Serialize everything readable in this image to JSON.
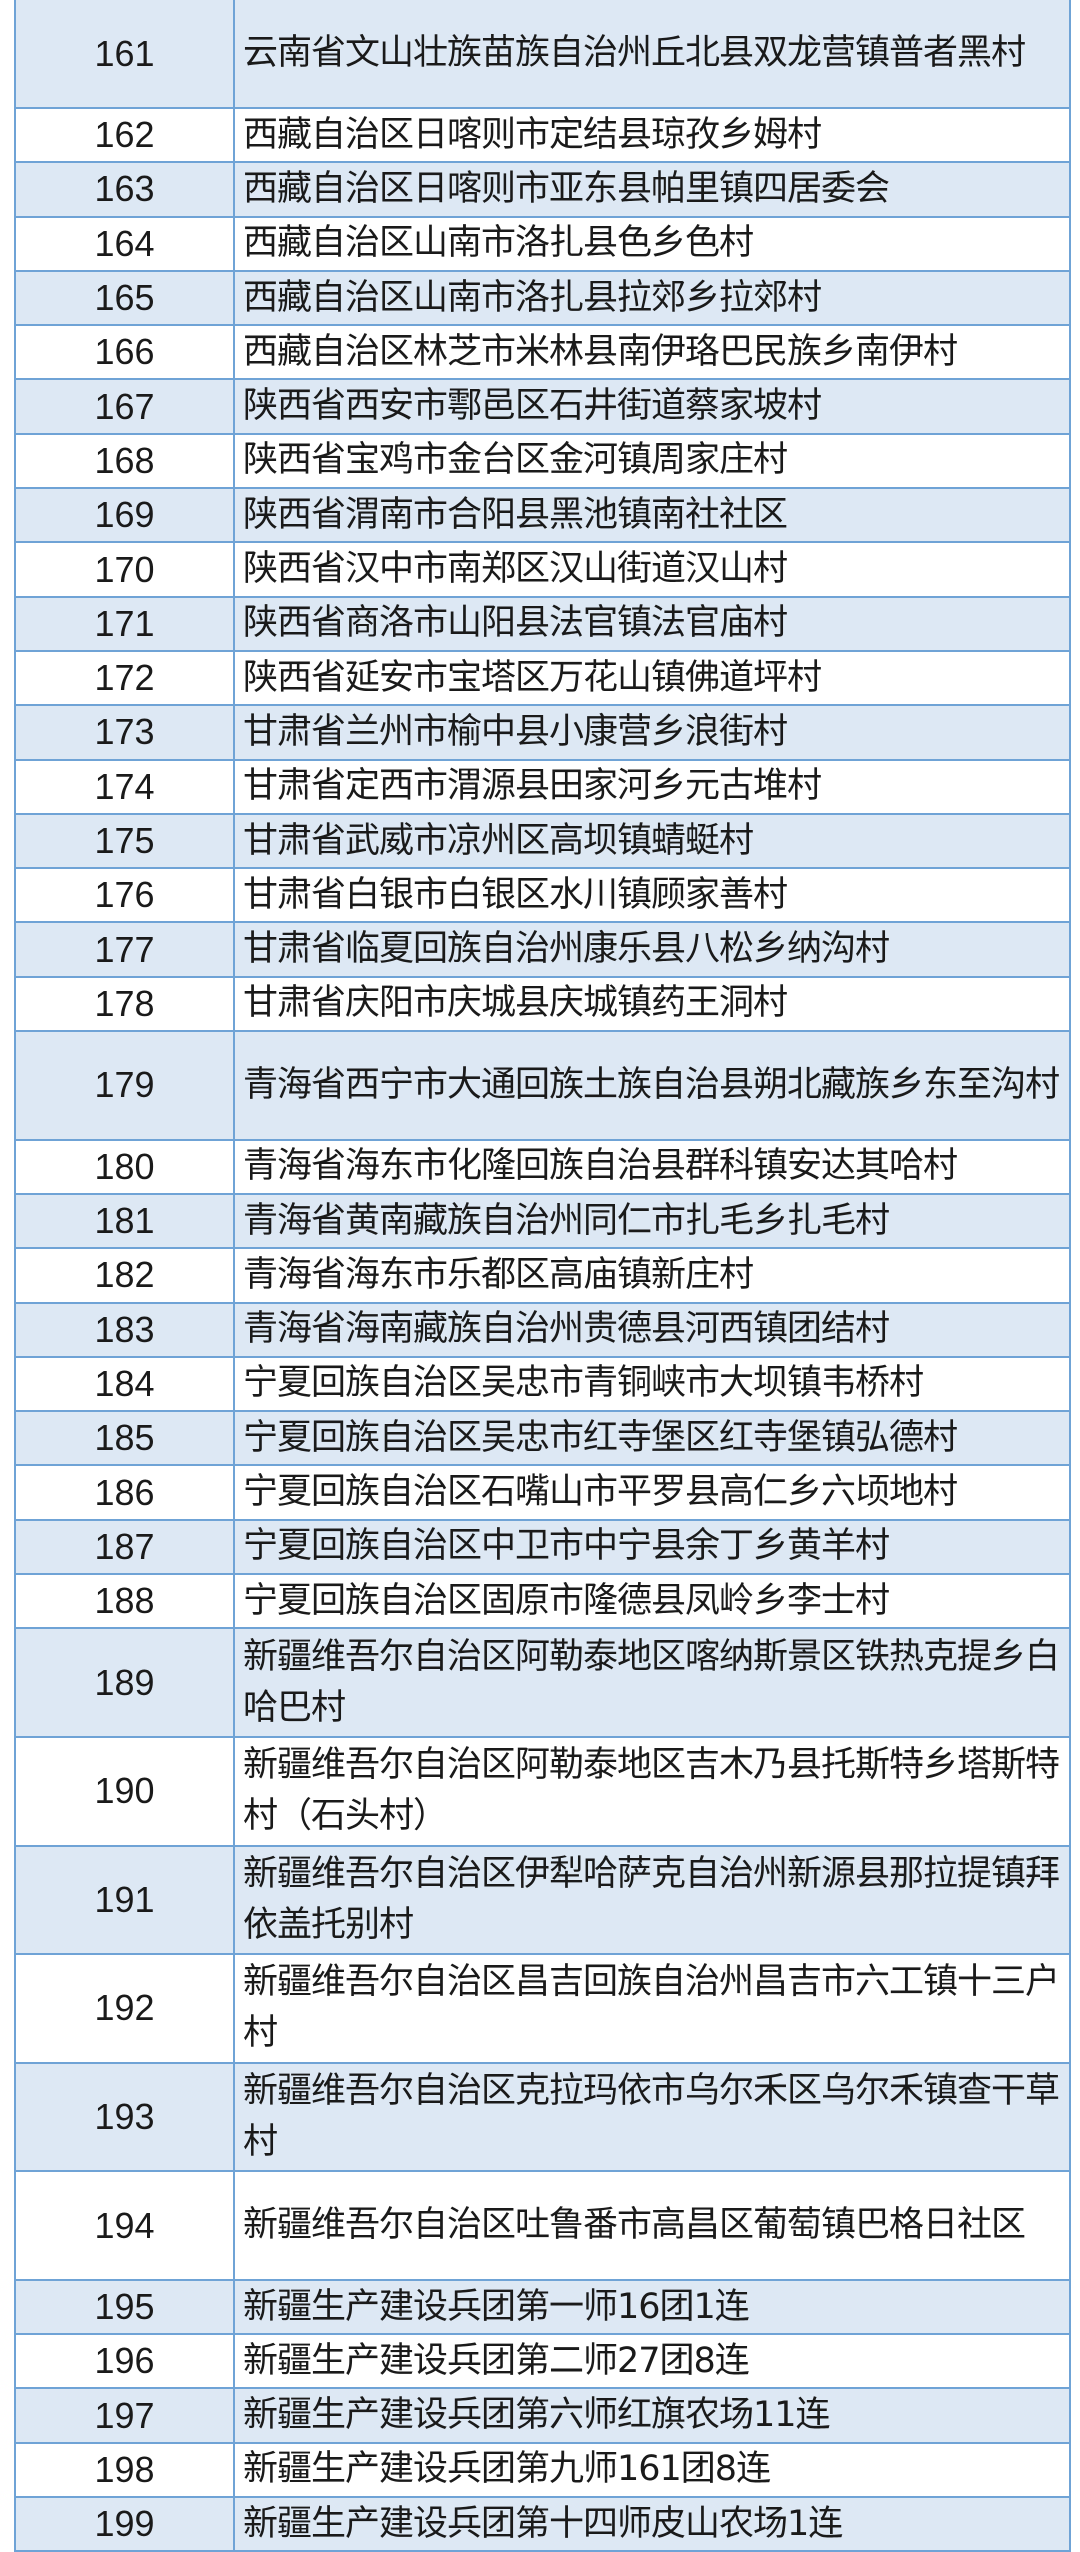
{
  "colors": {
    "border": "#6fa3d6",
    "stripe": "#dde8f4",
    "text": "#1a1a1a"
  },
  "rows": [
    {
      "no": "161",
      "name": "云南省文山壮族苗族自治州丘北县双龙营镇普者黑村",
      "lines": 2
    },
    {
      "no": "162",
      "name": "西藏自治区日喀则市定结县琼孜乡姆村",
      "lines": 1
    },
    {
      "no": "163",
      "name": "西藏自治区日喀则市亚东县帕里镇四居委会",
      "lines": 1
    },
    {
      "no": "164",
      "name": "西藏自治区山南市洛扎县色乡色村",
      "lines": 1
    },
    {
      "no": "165",
      "name": "西藏自治区山南市洛扎县拉郊乡拉郊村",
      "lines": 1
    },
    {
      "no": "166",
      "name": "西藏自治区林芝市米林县南伊珞巴民族乡南伊村",
      "lines": 1
    },
    {
      "no": "167",
      "name": "陕西省西安市鄠邑区石井街道蔡家坡村",
      "lines": 1
    },
    {
      "no": "168",
      "name": "陕西省宝鸡市金台区金河镇周家庄村",
      "lines": 1
    },
    {
      "no": "169",
      "name": "陕西省渭南市合阳县黑池镇南社社区",
      "lines": 1
    },
    {
      "no": "170",
      "name": "陕西省汉中市南郑区汉山街道汉山村",
      "lines": 1
    },
    {
      "no": "171",
      "name": "陕西省商洛市山阳县法官镇法官庙村",
      "lines": 1
    },
    {
      "no": "172",
      "name": "陕西省延安市宝塔区万花山镇佛道坪村",
      "lines": 1
    },
    {
      "no": "173",
      "name": "甘肃省兰州市榆中县小康营乡浪街村",
      "lines": 1
    },
    {
      "no": "174",
      "name": "甘肃省定西市渭源县田家河乡元古堆村",
      "lines": 1
    },
    {
      "no": "175",
      "name": "甘肃省武威市凉州区高坝镇蜻蜓村",
      "lines": 1
    },
    {
      "no": "176",
      "name": "甘肃省白银市白银区水川镇顾家善村",
      "lines": 1
    },
    {
      "no": "177",
      "name": "甘肃省临夏回族自治州康乐县八松乡纳沟村",
      "lines": 1
    },
    {
      "no": "178",
      "name": "甘肃省庆阳市庆城县庆城镇药王洞村",
      "lines": 1
    },
    {
      "no": "179",
      "name": "青海省西宁市大通回族土族自治县朔北藏族乡东至沟村",
      "lines": 2
    },
    {
      "no": "180",
      "name": "青海省海东市化隆回族自治县群科镇安达其哈村",
      "lines": 1
    },
    {
      "no": "181",
      "name": "青海省黄南藏族自治州同仁市扎毛乡扎毛村",
      "lines": 1
    },
    {
      "no": "182",
      "name": "青海省海东市乐都区高庙镇新庄村",
      "lines": 1
    },
    {
      "no": "183",
      "name": "青海省海南藏族自治州贵德县河西镇团结村",
      "lines": 1
    },
    {
      "no": "184",
      "name": "宁夏回族自治区吴忠市青铜峡市大坝镇韦桥村",
      "lines": 1
    },
    {
      "no": "185",
      "name": "宁夏回族自治区吴忠市红寺堡区红寺堡镇弘德村",
      "lines": 1
    },
    {
      "no": "186",
      "name": "宁夏回族自治区石嘴山市平罗县高仁乡六顷地村",
      "lines": 1
    },
    {
      "no": "187",
      "name": "宁夏回族自治区中卫市中宁县余丁乡黄羊村",
      "lines": 1
    },
    {
      "no": "188",
      "name": "宁夏回族自治区固原市隆德县凤岭乡李士村",
      "lines": 1
    },
    {
      "no": "189",
      "name": "新疆维吾尔自治区阿勒泰地区喀纳斯景区铁热克提乡白哈巴村",
      "lines": 2
    },
    {
      "no": "190",
      "name": "新疆维吾尔自治区阿勒泰地区吉木乃县托斯特乡塔斯特村（石头村）",
      "lines": 2
    },
    {
      "no": "191",
      "name": "新疆维吾尔自治区伊犁哈萨克自治州新源县那拉提镇拜依盖托别村",
      "lines": 2
    },
    {
      "no": "192",
      "name": "新疆维吾尔自治区昌吉回族自治州昌吉市六工镇十三户村",
      "lines": 2
    },
    {
      "no": "193",
      "name": "新疆维吾尔自治区克拉玛依市乌尔禾区乌尔禾镇查干草村",
      "lines": 2
    },
    {
      "no": "194",
      "name": "新疆维吾尔自治区吐鲁番市高昌区葡萄镇巴格日社区",
      "lines": 2
    },
    {
      "no": "195",
      "name": "新疆生产建设兵团第一师16团1连",
      "lines": 1
    },
    {
      "no": "196",
      "name": "新疆生产建设兵团第二师27团8连",
      "lines": 1
    },
    {
      "no": "197",
      "name": "新疆生产建设兵团第六师红旗农场11连",
      "lines": 1
    },
    {
      "no": "198",
      "name": "新疆生产建设兵团第九师161团8连",
      "lines": 1
    },
    {
      "no": "199",
      "name": "新疆生产建设兵团第十四师皮山农场1连",
      "lines": 1
    }
  ]
}
